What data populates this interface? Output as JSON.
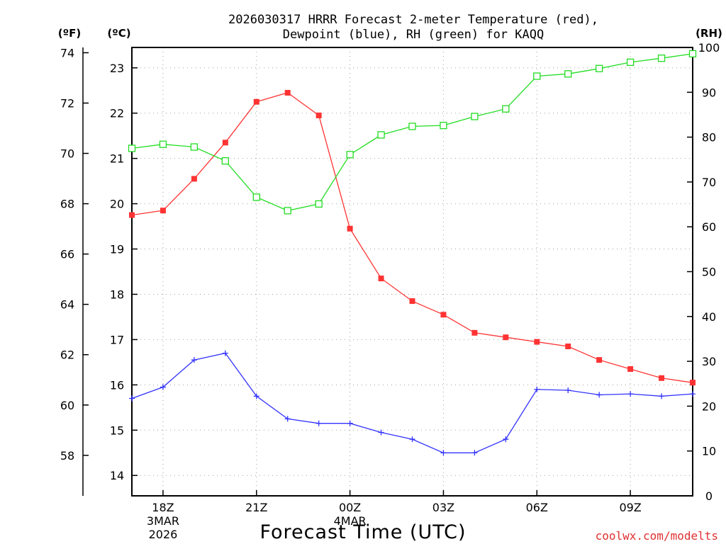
{
  "chart_data": {
    "type": "line",
    "title_line1": "2026030317 HRRR Forecast 2-meter Temperature (red),",
    "title_line2": "Dewpoint (blue), RH (green) for KAQQ",
    "xlabel": "Forecast Time (UTC)",
    "left_outer_axis_label": "(ºF)",
    "left_inner_axis_label": "(ºC)",
    "right_axis_label": "(RH)",
    "credit": "coolwx.com/modelts",
    "x_hours": [
      17,
      18,
      19,
      20,
      21,
      22,
      23,
      24,
      25,
      26,
      27,
      28,
      29,
      30,
      31,
      32,
      33,
      34,
      35
    ],
    "x_ticks": [
      {
        "hour": 18,
        "label": "18Z",
        "sub1": "3MAR",
        "sub2": "2026"
      },
      {
        "hour": 21,
        "label": "21Z",
        "sub1": "",
        "sub2": ""
      },
      {
        "hour": 24,
        "label": "00Z",
        "sub1": "4MAR",
        "sub2": ""
      },
      {
        "hour": 27,
        "label": "03Z",
        "sub1": "",
        "sub2": ""
      },
      {
        "hour": 30,
        "label": "06Z",
        "sub1": "",
        "sub2": ""
      },
      {
        "hour": 33,
        "label": "09Z",
        "sub1": "",
        "sub2": ""
      }
    ],
    "celsius_axis": {
      "range": [
        13.55,
        23.45
      ],
      "ticks": [
        14,
        15,
        16,
        17,
        18,
        19,
        20,
        21,
        22,
        23
      ]
    },
    "fahrenheit_ticks": [
      58,
      60,
      62,
      64,
      66,
      68,
      70,
      72,
      74
    ],
    "rh_axis": {
      "range": [
        0,
        100
      ],
      "ticks": [
        0,
        10,
        20,
        30,
        40,
        50,
        60,
        70,
        80,
        90,
        100
      ]
    },
    "grid": true,
    "series": [
      {
        "name": "Temperature",
        "color": "#ff3333",
        "marker": "filled-square",
        "axis": "celsius",
        "values": [
          19.75,
          19.85,
          20.55,
          21.35,
          22.25,
          22.45,
          21.95,
          19.45,
          18.35,
          17.85,
          17.55,
          17.15,
          17.05,
          16.95,
          16.85,
          16.55,
          16.35,
          16.15,
          16.05
        ]
      },
      {
        "name": "Dewpoint",
        "color": "#3333ff",
        "marker": "plus",
        "axis": "celsius",
        "values": [
          15.7,
          15.95,
          16.55,
          16.7,
          15.75,
          15.25,
          15.15,
          15.15,
          14.95,
          14.8,
          14.5,
          14.5,
          14.8,
          15.9,
          15.88,
          15.78,
          15.8,
          15.75,
          15.8
        ]
      },
      {
        "name": "RH",
        "color": "#22dd22",
        "marker": "open-square",
        "axis": "rh",
        "values": [
          77.5,
          78.4,
          77.8,
          74.7,
          66.6,
          63.6,
          65.1,
          76.1,
          80.5,
          82.4,
          82.6,
          84.6,
          86.3,
          93.6,
          94.1,
          95.3,
          96.7,
          97.6,
          98.6
        ]
      }
    ]
  }
}
